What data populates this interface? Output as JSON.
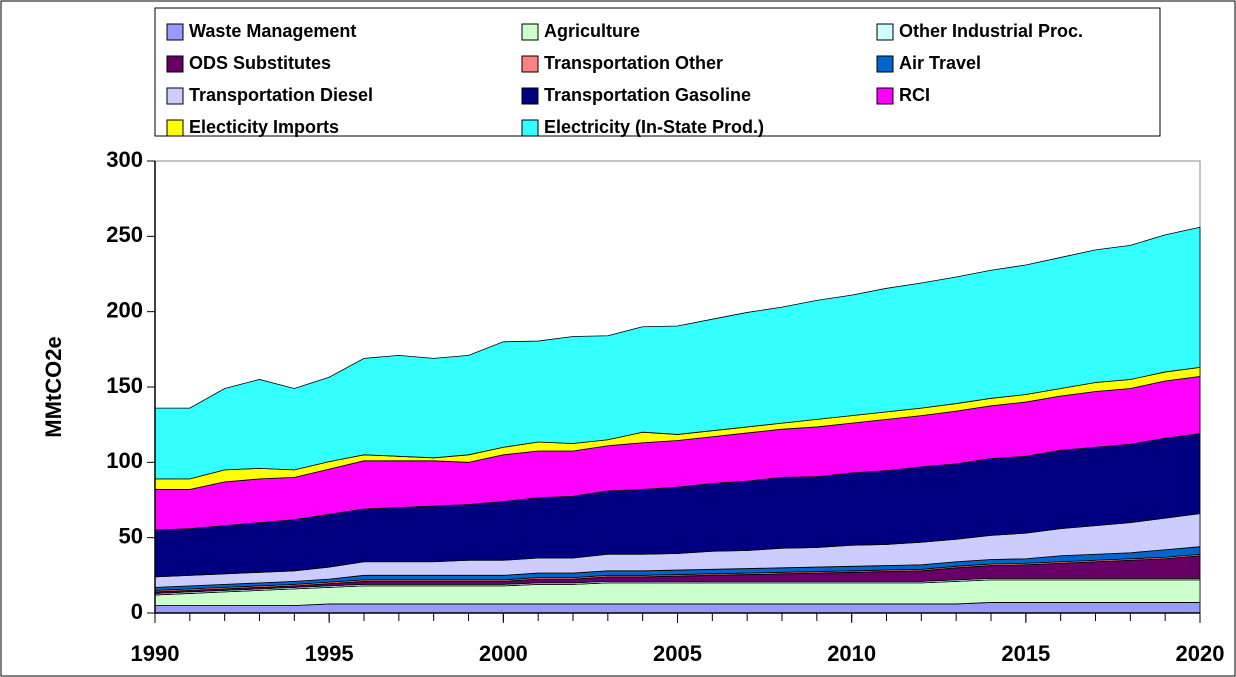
{
  "chart_data": {
    "type": "stacked_area",
    "y_label": "MMtCO2e",
    "x": [
      1990,
      1991,
      1992,
      1993,
      1994,
      1995,
      1996,
      1997,
      1998,
      1999,
      2000,
      2001,
      2002,
      2003,
      2004,
      2005,
      2006,
      2007,
      2008,
      2009,
      2010,
      2011,
      2012,
      2013,
      2014,
      2015,
      2016,
      2017,
      2018,
      2019,
      2020
    ],
    "xlim": [
      1990,
      2020
    ],
    "xticks": [
      1990,
      1995,
      2000,
      2005,
      2010,
      2015,
      2020
    ],
    "ylim": [
      0,
      300
    ],
    "yticks": [
      0,
      50,
      100,
      150,
      200,
      250,
      300
    ],
    "legend": "top",
    "series": [
      {
        "name": "Waste Management",
        "color": "#9999ff",
        "values": [
          5,
          5,
          5,
          5,
          5,
          6,
          6,
          6,
          6,
          6,
          6,
          6,
          6,
          6,
          6,
          6,
          6,
          6,
          6,
          6,
          6,
          6,
          6,
          6,
          7,
          7,
          7,
          7,
          7,
          7,
          7
        ]
      },
      {
        "name": "Agriculture",
        "color": "#ccffcc",
        "values": [
          7,
          8,
          9,
          10,
          11,
          11,
          12,
          12,
          12,
          12,
          12,
          13,
          13,
          14,
          14,
          14,
          14,
          14,
          14,
          14,
          14,
          14,
          14,
          15,
          15,
          15,
          15,
          15,
          15,
          15,
          15
        ]
      },
      {
        "name": "Other Industrial Proc.",
        "color": "#ccffff",
        "values": [
          1,
          1,
          1,
          1,
          1,
          1,
          1,
          1,
          1,
          1,
          1,
          1,
          1,
          1,
          1,
          1,
          1,
          1,
          1,
          1,
          1,
          1,
          1,
          1,
          1,
          1,
          1,
          1,
          1,
          1,
          1
        ]
      },
      {
        "name": "ODS Substitutes",
        "color": "#660066",
        "values": [
          1,
          1,
          1,
          1,
          1,
          1.5,
          2,
          2,
          2,
          2,
          2,
          2.5,
          2.5,
          3,
          3,
          3.5,
          4,
          4.5,
          5,
          5.5,
          6,
          6.5,
          7,
          8,
          8.5,
          9,
          10,
          11,
          12,
          13,
          15
        ]
      },
      {
        "name": "Transportation Other",
        "color": "#ff8080",
        "values": [
          1,
          1,
          1,
          1,
          1,
          1,
          1,
          1,
          1,
          1,
          1,
          1,
          1,
          1,
          1,
          1,
          1,
          1,
          1,
          1,
          1,
          1,
          1,
          1,
          1,
          1,
          1,
          1,
          1,
          1,
          1
        ]
      },
      {
        "name": "Air Travel",
        "color": "#0066cc",
        "values": [
          2,
          2,
          2,
          2,
          2,
          2,
          3,
          3,
          3,
          3,
          3,
          3,
          3,
          3,
          3,
          3,
          3,
          3,
          3,
          3,
          3,
          3,
          3,
          3,
          3,
          3,
          4,
          4,
          4,
          5,
          5
        ]
      },
      {
        "name": "Transportation Diesel",
        "color": "#ccccff",
        "values": [
          7,
          7,
          7,
          7,
          7,
          8,
          9,
          9,
          9,
          10,
          10,
          10,
          10,
          11,
          11,
          11,
          12,
          12,
          13,
          13,
          14,
          14,
          15,
          15,
          16,
          17,
          18,
          19,
          20,
          21,
          22
        ]
      },
      {
        "name": "Transportation Gasoline",
        "color": "#000080",
        "values": [
          31,
          31,
          32,
          33,
          34,
          35,
          35,
          36,
          37,
          37,
          39,
          40,
          41,
          42,
          43,
          44,
          45,
          46,
          47,
          47,
          48,
          49,
          50,
          50,
          51,
          51,
          52,
          52,
          52,
          53,
          53
        ]
      },
      {
        "name": "RCI",
        "color": "#ff00ff",
        "values": [
          27,
          26,
          29,
          29,
          28,
          30,
          32,
          31,
          30,
          28,
          31,
          31,
          30,
          30,
          31,
          31,
          31,
          32,
          32,
          33,
          33,
          34,
          34,
          35,
          35,
          36,
          36,
          37,
          37,
          38,
          38
        ]
      },
      {
        "name": "Electicity Imports",
        "color": "#ffff00",
        "values": [
          7,
          7,
          8,
          7,
          5,
          5,
          4,
          3,
          2,
          5,
          5,
          6,
          5,
          4,
          7,
          4,
          4,
          4,
          4,
          5,
          5,
          5,
          5,
          5,
          5,
          5,
          5,
          6,
          6,
          6,
          6
        ]
      },
      {
        "name": "Electricity (In-State Prod.)",
        "color": "#33ffff",
        "values": [
          47,
          47,
          54,
          59,
          54,
          56,
          64,
          67,
          66,
          66,
          70,
          67,
          71,
          69,
          70,
          72,
          74,
          76,
          77,
          79,
          80,
          82,
          83,
          84,
          85,
          86,
          87,
          88,
          89,
          91,
          93
        ]
      }
    ]
  }
}
